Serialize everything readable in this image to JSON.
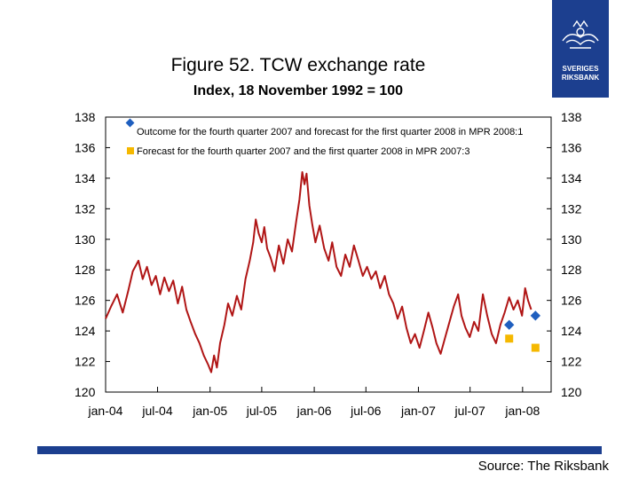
{
  "chart_data": {
    "type": "line",
    "title": "Figure 52. TCW exchange rate",
    "subtitle": "Index, 18 November 1992 = 100",
    "ylim": [
      120,
      138
    ],
    "yticks": [
      120,
      122,
      124,
      126,
      128,
      130,
      132,
      134,
      136,
      138
    ],
    "xlim": [
      "2004-01-01",
      "2008-04-10"
    ],
    "xticks": [
      "2004-01-01",
      "2004-07-01",
      "2005-01-01",
      "2005-07-01",
      "2006-01-01",
      "2006-07-01",
      "2007-01-01",
      "2007-07-01",
      "2008-01-01"
    ],
    "xtick_labels": [
      "jan-04",
      "jul-04",
      "jan-05",
      "jul-05",
      "jan-06",
      "jul-06",
      "jan-07",
      "jul-07",
      "jan-08"
    ],
    "grid": false,
    "legend_position": "top-left",
    "series": [
      {
        "name": "",
        "kind": "line",
        "color": "#b01515",
        "points": [
          [
            "2004-01-01",
            124.8
          ],
          [
            "2004-01-20",
            125.6
          ],
          [
            "2004-02-10",
            126.4
          ],
          [
            "2004-03-01",
            125.2
          ],
          [
            "2004-03-20",
            126.6
          ],
          [
            "2004-04-05",
            127.9
          ],
          [
            "2004-04-25",
            128.6
          ],
          [
            "2004-05-10",
            127.4
          ],
          [
            "2004-05-25",
            128.2
          ],
          [
            "2004-06-10",
            127.0
          ],
          [
            "2004-06-25",
            127.6
          ],
          [
            "2004-07-10",
            126.4
          ],
          [
            "2004-07-25",
            127.5
          ],
          [
            "2004-08-10",
            126.6
          ],
          [
            "2004-08-25",
            127.3
          ],
          [
            "2004-09-10",
            125.8
          ],
          [
            "2004-09-25",
            126.9
          ],
          [
            "2004-10-10",
            125.4
          ],
          [
            "2004-10-25",
            124.6
          ],
          [
            "2004-11-10",
            123.8
          ],
          [
            "2004-11-25",
            123.2
          ],
          [
            "2004-12-10",
            122.4
          ],
          [
            "2004-12-25",
            121.8
          ],
          [
            "2005-01-05",
            121.3
          ],
          [
            "2005-01-15",
            122.4
          ],
          [
            "2005-01-25",
            121.6
          ],
          [
            "2005-02-05",
            123.2
          ],
          [
            "2005-02-20",
            124.4
          ],
          [
            "2005-03-05",
            125.8
          ],
          [
            "2005-03-20",
            125.0
          ],
          [
            "2005-04-05",
            126.3
          ],
          [
            "2005-04-20",
            125.4
          ],
          [
            "2005-05-05",
            127.4
          ],
          [
            "2005-05-20",
            128.6
          ],
          [
            "2005-06-01",
            129.8
          ],
          [
            "2005-06-10",
            131.3
          ],
          [
            "2005-06-20",
            130.4
          ],
          [
            "2005-07-01",
            129.8
          ],
          [
            "2005-07-10",
            130.8
          ],
          [
            "2005-07-20",
            129.4
          ],
          [
            "2005-08-01",
            128.8
          ],
          [
            "2005-08-15",
            127.9
          ],
          [
            "2005-08-30",
            129.6
          ],
          [
            "2005-09-15",
            128.4
          ],
          [
            "2005-09-30",
            130.0
          ],
          [
            "2005-10-15",
            129.2
          ],
          [
            "2005-10-30",
            131.2
          ],
          [
            "2005-11-10",
            132.6
          ],
          [
            "2005-11-20",
            134.4
          ],
          [
            "2005-11-28",
            133.6
          ],
          [
            "2005-12-05",
            134.3
          ],
          [
            "2005-12-15",
            132.2
          ],
          [
            "2005-12-25",
            131.0
          ],
          [
            "2006-01-05",
            129.8
          ],
          [
            "2006-01-20",
            130.9
          ],
          [
            "2006-02-05",
            129.4
          ],
          [
            "2006-02-20",
            128.6
          ],
          [
            "2006-03-05",
            129.8
          ],
          [
            "2006-03-20",
            128.2
          ],
          [
            "2006-04-05",
            127.6
          ],
          [
            "2006-04-20",
            129.0
          ],
          [
            "2006-05-05",
            128.2
          ],
          [
            "2006-05-20",
            129.6
          ],
          [
            "2006-06-05",
            128.6
          ],
          [
            "2006-06-20",
            127.6
          ],
          [
            "2006-07-05",
            128.2
          ],
          [
            "2006-07-20",
            127.4
          ],
          [
            "2006-08-05",
            127.9
          ],
          [
            "2006-08-20",
            126.8
          ],
          [
            "2006-09-05",
            127.6
          ],
          [
            "2006-09-20",
            126.4
          ],
          [
            "2006-10-05",
            125.8
          ],
          [
            "2006-10-20",
            124.8
          ],
          [
            "2006-11-05",
            125.6
          ],
          [
            "2006-11-20",
            124.2
          ],
          [
            "2006-12-05",
            123.2
          ],
          [
            "2006-12-20",
            123.8
          ],
          [
            "2007-01-05",
            122.9
          ],
          [
            "2007-01-20",
            124.0
          ],
          [
            "2007-02-05",
            125.2
          ],
          [
            "2007-02-20",
            124.2
          ],
          [
            "2007-03-05",
            123.2
          ],
          [
            "2007-03-20",
            122.5
          ],
          [
            "2007-04-05",
            123.6
          ],
          [
            "2007-04-20",
            124.6
          ],
          [
            "2007-05-05",
            125.6
          ],
          [
            "2007-05-20",
            126.4
          ],
          [
            "2007-06-01",
            125.0
          ],
          [
            "2007-06-15",
            124.2
          ],
          [
            "2007-06-30",
            123.6
          ],
          [
            "2007-07-15",
            124.6
          ],
          [
            "2007-07-30",
            124.0
          ],
          [
            "2007-08-15",
            126.4
          ],
          [
            "2007-08-30",
            125.0
          ],
          [
            "2007-09-15",
            123.8
          ],
          [
            "2007-09-30",
            123.2
          ],
          [
            "2007-10-15",
            124.4
          ],
          [
            "2007-10-30",
            125.2
          ],
          [
            "2007-11-15",
            126.2
          ],
          [
            "2007-11-30",
            125.4
          ],
          [
            "2007-12-15",
            126.0
          ],
          [
            "2007-12-30",
            125.0
          ],
          [
            "2008-01-10",
            126.8
          ],
          [
            "2008-01-20",
            126.0
          ],
          [
            "2008-01-31",
            125.4
          ]
        ]
      },
      {
        "name": "Outcome for the fourth quarter 2007 and forecast for the first quarter 2008 in MPR 2008:1",
        "kind": "marker",
        "marker": "diamond",
        "color": "#1f5fbf",
        "points": [
          [
            "2007-11-15",
            124.4
          ],
          [
            "2008-02-15",
            125.0
          ]
        ]
      },
      {
        "name": "Forecast for the fourth quarter 2007 and the first quarter 2008 in MPR 2007:3",
        "kind": "marker",
        "marker": "square",
        "color": "#f5b800",
        "points": [
          [
            "2007-11-15",
            123.5
          ],
          [
            "2008-02-15",
            122.9
          ]
        ]
      }
    ]
  },
  "footer": {
    "source": "Source: The Riksbank"
  },
  "logo": {
    "lines": [
      "SVERIGES",
      "RIKSBANK"
    ]
  }
}
